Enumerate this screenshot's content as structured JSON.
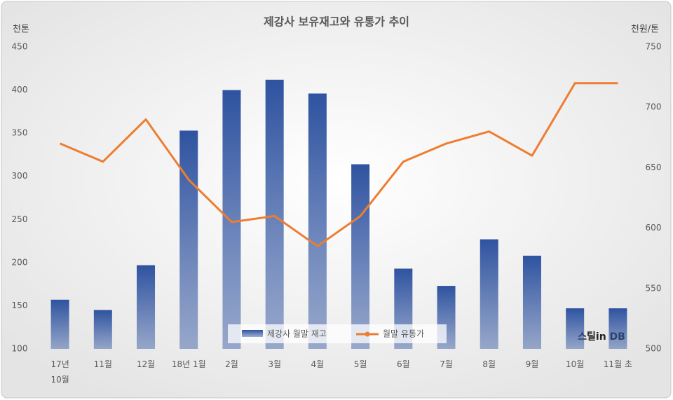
{
  "chart_data": {
    "type": "bar-line",
    "title": "제강사 보유재고와 유통가 추이",
    "y_label": "천톤",
    "y2_label": "천원/톤",
    "watermark": "스틸in DB",
    "categories": [
      "17년\n10월",
      "11월",
      "12월",
      "18년 1월",
      "2월",
      "3월",
      "4월",
      "5월",
      "6월",
      "7월",
      "8월",
      "9월",
      "10월",
      "11월 초"
    ],
    "series": [
      {
        "name": "제강사 월말 재고",
        "type": "bar",
        "color": "#2f53a0",
        "values": [
          157,
          145,
          197,
          353,
          400,
          412,
          396,
          314,
          193,
          173,
          227,
          208,
          147,
          147
        ]
      },
      {
        "name": "월말 유통가",
        "type": "line",
        "axis": "y2",
        "color": "#ed7d31",
        "values": [
          670,
          655,
          690,
          640,
          605,
          610,
          585,
          610,
          655,
          670,
          680,
          660,
          720,
          720
        ]
      }
    ],
    "ylim": [
      100,
      450
    ],
    "yticks": [
      100,
      150,
      200,
      250,
      300,
      350,
      400,
      450
    ],
    "y2lim": [
      500,
      750
    ],
    "y2ticks": [
      500,
      550,
      600,
      650,
      700,
      750
    ]
  }
}
